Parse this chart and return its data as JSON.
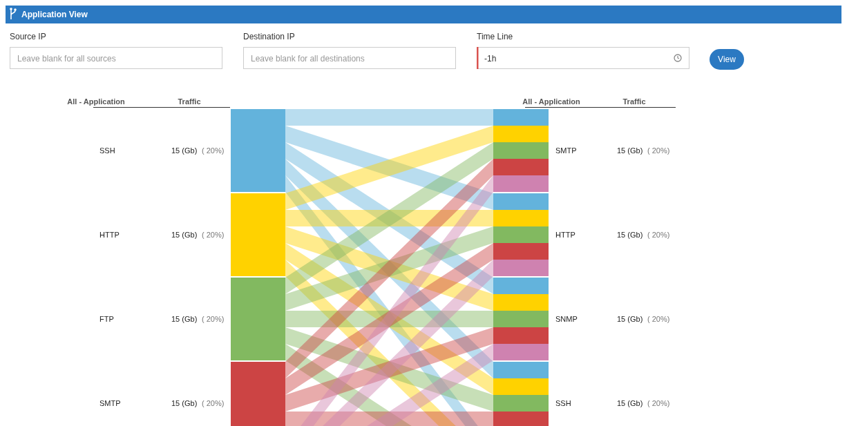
{
  "chart_data": {
    "type": "other",
    "title": "Application View",
    "categories": [
      "SSH",
      "HTTP",
      "FTP",
      "SMTP",
      null
    ],
    "y_categories": [
      "SMTP",
      "HTTP",
      "SNMP",
      "SSH",
      null
    ],
    "colors": [
      "#63b3dc",
      "#ffd200",
      "#82b960",
      "#cc4444",
      "#cf82b0"
    ],
    "series": [
      {
        "values": [
          15,
          15,
          15,
          15,
          null
        ],
        "value_labels": [
          "15 (Gb)",
          "15 (Gb)",
          "15 (Gb)",
          "15 (Gb)",
          null
        ]
      },
      {
        "values": [
          20,
          20,
          20,
          20,
          null
        ],
        "value_labels": [
          "( 20%)",
          "( 20%)",
          "( 20%)",
          "( 20%)",
          null
        ]
      },
      {
        "values": [
          15,
          15,
          15,
          15,
          null
        ],
        "value_labels": [
          "15 (Gb)",
          "15 (Gb)",
          "15 (Gb)",
          "15 (Gb)",
          null
        ]
      },
      {
        "values": [
          20,
          20,
          20,
          20,
          null
        ],
        "value_labels": [
          "( 20%)",
          "( 20%)",
          "( 20%)",
          "( 20%)",
          null
        ]
      }
    ],
    "annotations": [
      "Source IP",
      "Leave blank for all sources",
      "Destination IP",
      "Leave blank for all destinations",
      "Time Line",
      "-1h",
      "View",
      "All - Application",
      "Traffic",
      "All - Application",
      "Traffic"
    ]
  }
}
